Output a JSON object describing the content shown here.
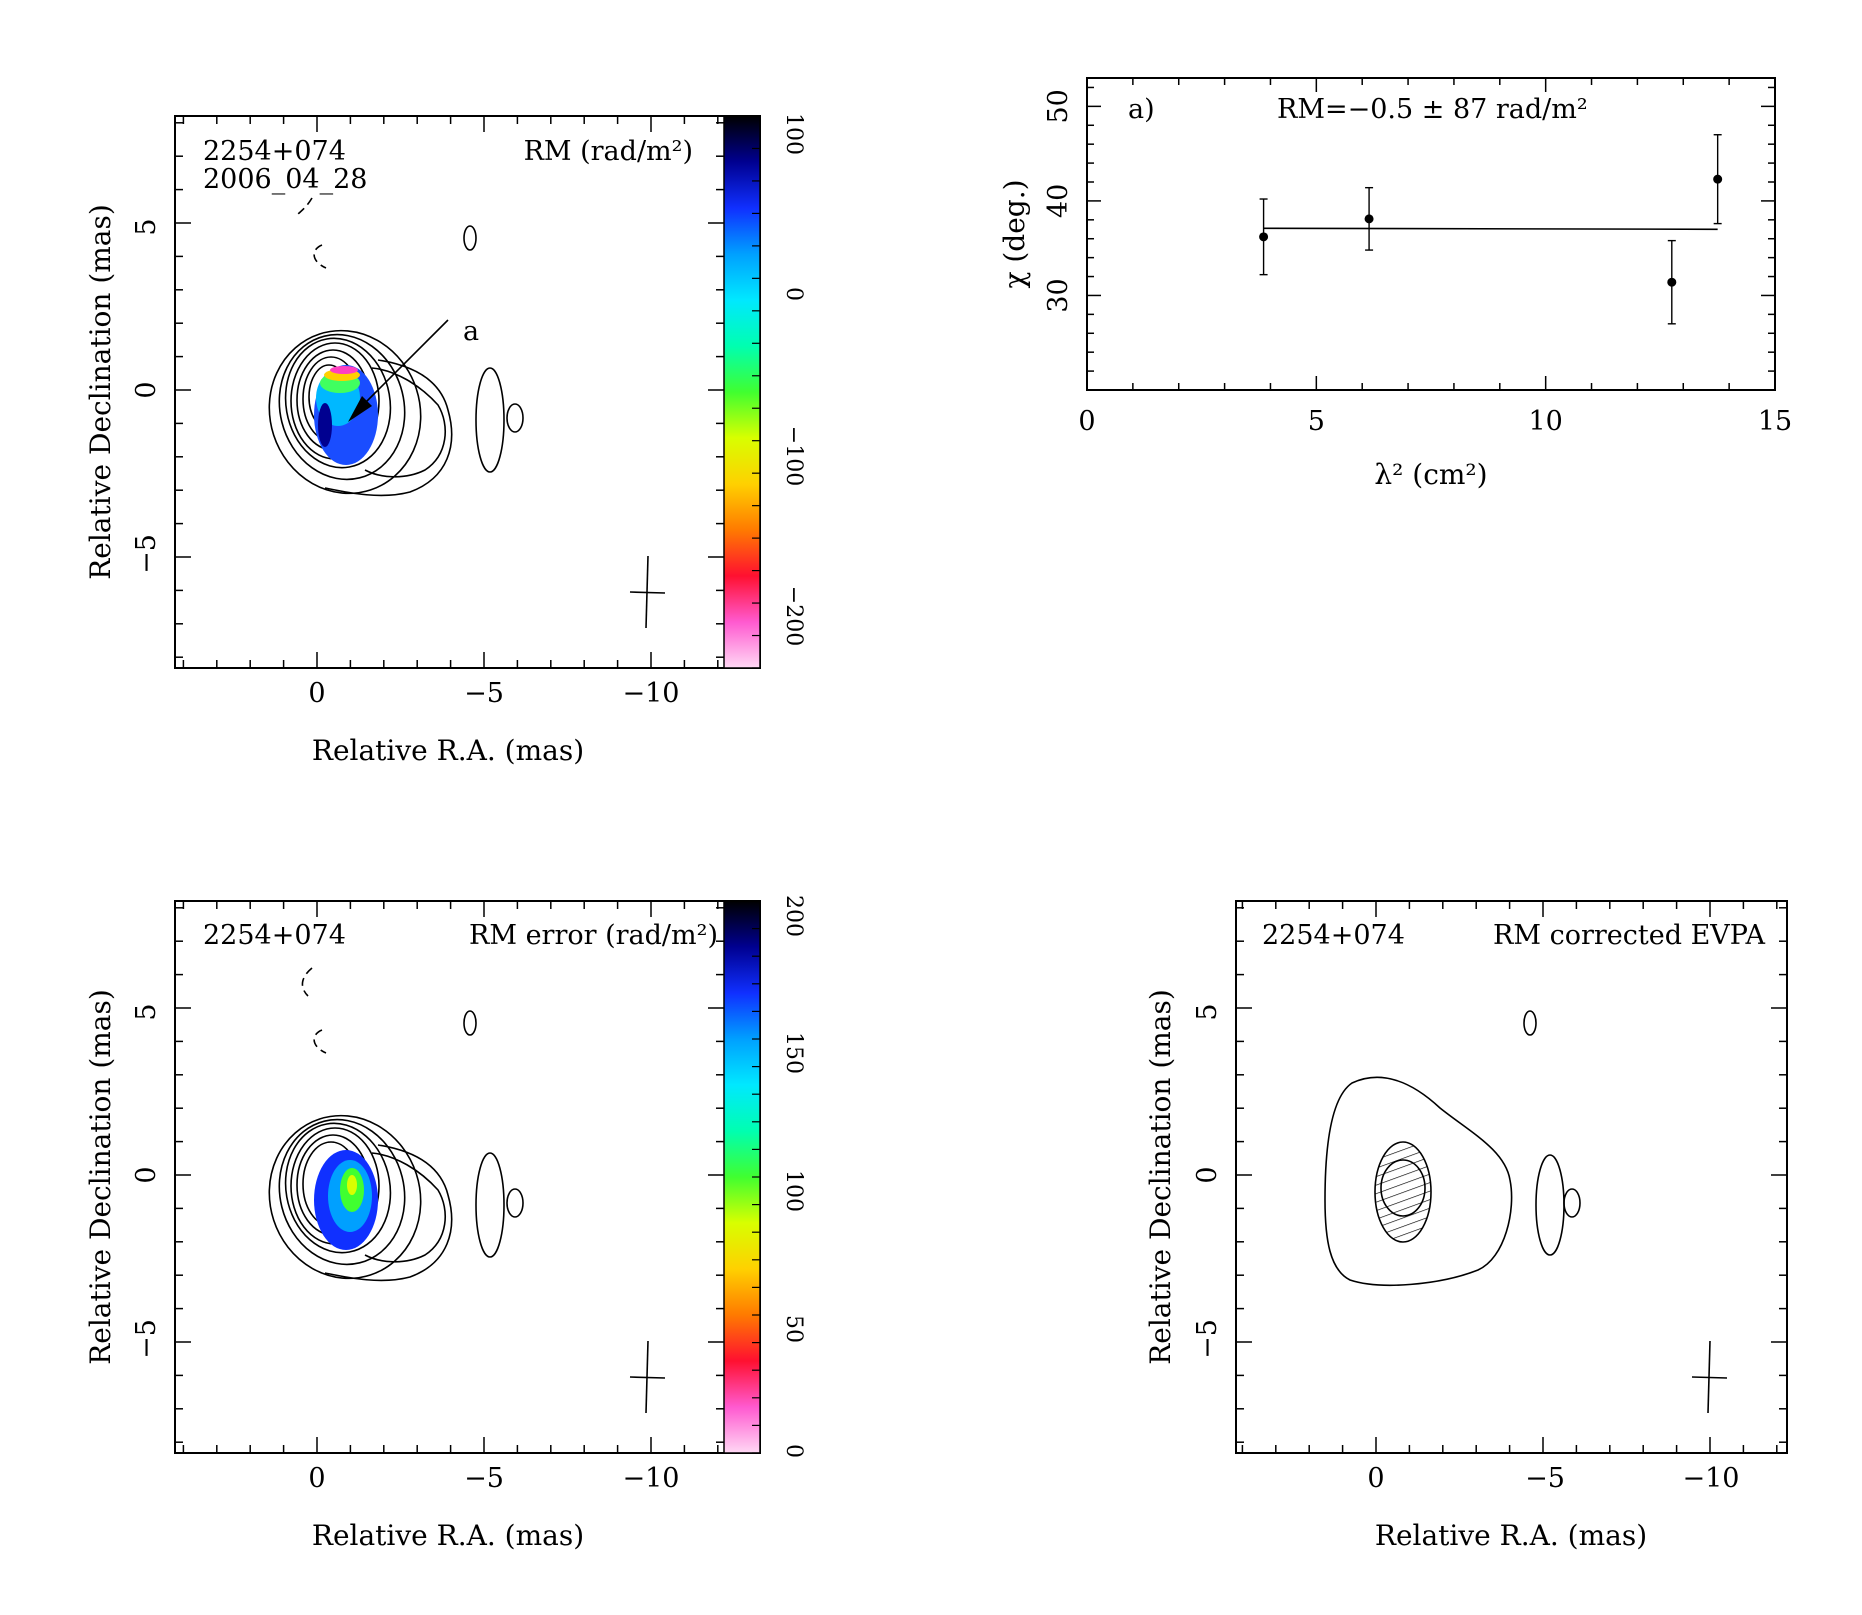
{
  "panels": {
    "rm_map": {
      "source": "2254+074",
      "date": "2006_04_28",
      "quantity_label": "RM (rad/m²)",
      "xlabel": "Relative R.A. (mas)",
      "ylabel": "Relative Declination (mas)",
      "xticks": [
        "0",
        "−5",
        "−10"
      ],
      "yticks": [
        "−5",
        "0",
        "5"
      ],
      "annotation": "a",
      "colorbar_ticks": [
        "100",
        "0",
        "−100",
        "−200"
      ],
      "colorbar_range": [
        -240,
        100
      ]
    },
    "rm_error_map": {
      "source": "2254+074",
      "quantity_label": "RM error (rad/m²)",
      "xlabel": "Relative R.A. (mas)",
      "ylabel": "Relative Declination (mas)",
      "xticks": [
        "0",
        "−5",
        "−10"
      ],
      "yticks": [
        "−5",
        "0",
        "5"
      ],
      "colorbar_ticks": [
        "200",
        "150",
        "100",
        "50",
        "0"
      ],
      "colorbar_range": [
        0,
        200
      ]
    },
    "evpa_map": {
      "source": "2254+074",
      "quantity_label": "RM corrected EVPA",
      "xlabel": "Relative R.A. (mas)",
      "ylabel": "Relative Declination (mas)",
      "xticks": [
        "0",
        "−5",
        "−10"
      ],
      "yticks": [
        "−5",
        "0",
        "5"
      ]
    }
  },
  "colors": {
    "rm_scale": [
      "#ffd8f4",
      "#ff5ad0",
      "#ff1030",
      "#ff7a00",
      "#ffd000",
      "#d8ff00",
      "#40ff30",
      "#00ffb0",
      "#00e8ff",
      "#00a0ff",
      "#1030ff",
      "#000090",
      "#000000"
    ],
    "line": "#000000",
    "background": "#ffffff"
  },
  "chart_data": {
    "type": "scatter",
    "label": "a)",
    "fit_text": "RM=−0.5 ± 87 rad/m²",
    "xlabel": "λ² (cm²)",
    "ylabel": "χ (deg.)",
    "xlim": [
      0,
      15
    ],
    "ylim": [
      20,
      53
    ],
    "xticks": [
      0,
      5,
      10,
      15
    ],
    "yticks": [
      30,
      40,
      50
    ],
    "points": [
      {
        "x": 3.85,
        "y": 36.2,
        "err": 4.0
      },
      {
        "x": 6.15,
        "y": 38.1,
        "err": 3.3
      },
      {
        "x": 12.75,
        "y": 31.4,
        "err": 4.4
      },
      {
        "x": 13.75,
        "y": 42.3,
        "err": 4.7
      }
    ],
    "fit_line": {
      "x": [
        3.85,
        13.75
      ],
      "y": [
        37.1,
        37.0
      ]
    }
  }
}
